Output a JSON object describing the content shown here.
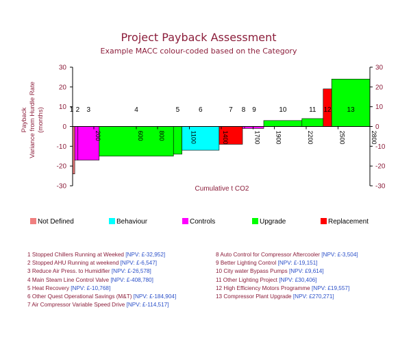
{
  "chart_data": {
    "type": "bar",
    "subtype": "marginal-abatement-cost-curve (variable width bars)",
    "title": "Project Payback Assessment",
    "subtitle": "Example MACC colour-coded based on the Category",
    "xlabel": "Cumulative t CO2",
    "ylabel_lines": [
      "Payback",
      "Variance from Hurdle Rate",
      "(months)"
    ],
    "xlim": [
      0,
      2800
    ],
    "ylim": [
      -30,
      30
    ],
    "yticks": [
      -30,
      -20,
      -10,
      0,
      10,
      20,
      30
    ],
    "xticks": [
      200,
      600,
      800,
      1100,
      1400,
      1700,
      1900,
      2200,
      2500,
      2800
    ],
    "xtick_labels": [
      "200",
      "600",
      "800",
      "1100",
      "1400",
      "1700",
      "1900",
      "2200",
      "2500",
      "2800"
    ],
    "bars": [
      {
        "id": "1",
        "x0": 0,
        "x1": 20,
        "value": -24,
        "category": "Not Defined"
      },
      {
        "id": "2",
        "x0": 20,
        "x1": 50,
        "value": -17,
        "category": "Controls"
      },
      {
        "id": "3",
        "x0": 50,
        "x1": 250,
        "value": -17,
        "category": "Controls"
      },
      {
        "id": "4",
        "x0": 250,
        "x1": 950,
        "value": -15,
        "category": "Upgrade"
      },
      {
        "id": "5",
        "x0": 950,
        "x1": 1030,
        "value": -14,
        "category": "Upgrade"
      },
      {
        "id": "6",
        "x0": 1030,
        "x1": 1380,
        "value": -12,
        "category": "Behaviour"
      },
      {
        "id": "7",
        "x0": 1380,
        "x1": 1600,
        "value": -9,
        "category": "Replacement"
      },
      {
        "id": "8",
        "x0": 1600,
        "x1": 1620,
        "value": -1,
        "category": "Controls"
      },
      {
        "id": "9",
        "x0": 1620,
        "x1": 1800,
        "value": -1,
        "category": "Controls"
      },
      {
        "id": "10",
        "x0": 1800,
        "x1": 2160,
        "value": 3,
        "category": "Upgrade"
      },
      {
        "id": "11",
        "x0": 2160,
        "x1": 2360,
        "value": 4,
        "category": "Upgrade"
      },
      {
        "id": "12",
        "x0": 2360,
        "x1": 2440,
        "value": 19,
        "category": "Replacement"
      },
      {
        "id": "13",
        "x0": 2440,
        "x1": 2800,
        "value": 24,
        "category": "Upgrade"
      }
    ],
    "top_labels": [
      "1",
      "2",
      "3",
      "4",
      "5",
      "6",
      "7",
      "8",
      "9",
      "10",
      "11",
      "12",
      "13"
    ],
    "legend": [
      {
        "name": "Not Defined",
        "color": "#f08080"
      },
      {
        "name": "Behaviour",
        "color": "#00ffff"
      },
      {
        "name": "Controls",
        "color": "#ff00ff"
      },
      {
        "name": "Upgrade",
        "color": "#00ff00"
      },
      {
        "name": "Replacement",
        "color": "#ff0000"
      }
    ]
  },
  "notes_left": [
    {
      "label": "1 Stopped Chillers Running at Weeked",
      "npv": "[NPV: £-32,952]"
    },
    {
      "label": "2 Stopped AHU Running at weekend",
      "npv": "[NPV: £-6,547]"
    },
    {
      "label": "3 Reduce Air Press. to Humidifier",
      "npv": "[NPV: £-26,578]"
    },
    {
      "label": "4 Main Steam Line Control Valve",
      "npv": "[NPV: £-408,780]"
    },
    {
      "label": "5 Heat Recovery",
      "npv": "[NPV: £-10,768]"
    },
    {
      "label": "6 Other Quest Operational Savings (M&T)",
      "npv": "[NPV: £-184,904]"
    },
    {
      "label": "7 Air Compressor Variable Speed Drive",
      "npv": "[NPV: £-114,517]"
    }
  ],
  "notes_right": [
    {
      "label": "8 Auto Control for Compressor Aftercooler",
      "npv": "[NPV: £-3,504]"
    },
    {
      "label": "9 Better Lighting Control",
      "npv": "[NPV: £-19,151]"
    },
    {
      "label": "10 City water Bypass Pumps",
      "npv": "[NPV: £9,614]"
    },
    {
      "label": "11 Other Lighting Project",
      "npv": "[NPV: £30,406]"
    },
    {
      "label": "12 High Efficiency Motors Programme",
      "npv": "[NPV: £19,557]"
    },
    {
      "label": "13 Compressor Plant Upgrade",
      "npv": "[NPV: £270,271]"
    }
  ],
  "colors": {
    "title": "#8b1d3a",
    "axis_text": "#8b1d3a",
    "npv_text": "#2a4fc8"
  }
}
